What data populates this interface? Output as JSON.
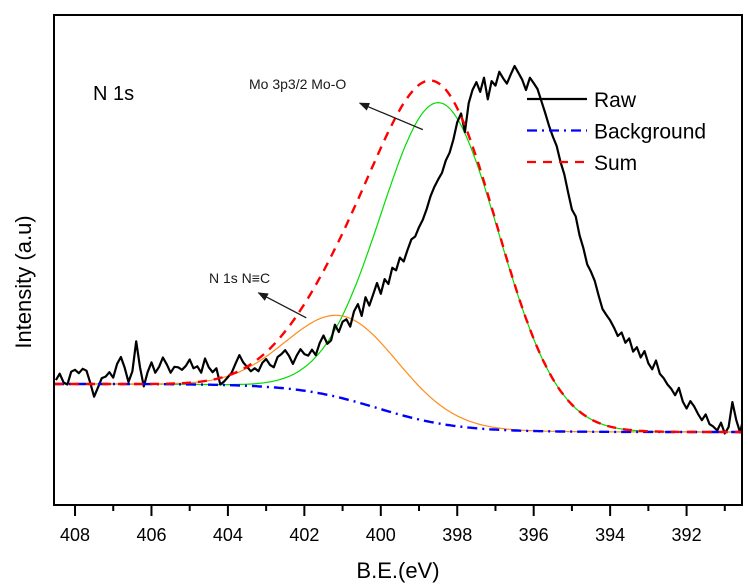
{
  "chart_data": {
    "type": "line",
    "title": "",
    "panel_label": "N 1s",
    "xlabel": "B.E.(eV)",
    "ylabel": "Intensity (a.u)",
    "xlim": [
      408.55,
      390.55
    ],
    "x_reversed": true,
    "ylim": [
      0,
      100
    ],
    "x_ticks": [
      408,
      406,
      404,
      402,
      400,
      398,
      396,
      394,
      392
    ],
    "x_minor_ticks": [
      407,
      405,
      403,
      401,
      399,
      397,
      395,
      393,
      391
    ],
    "y_ticks": [],
    "grid": false,
    "legend": {
      "position": "top-right",
      "entries": [
        {
          "label": "Raw",
          "color": "#000000",
          "style": "solid"
        },
        {
          "label": "Background",
          "color": "#0000ff",
          "style": "dash-dot"
        },
        {
          "label": "Sum",
          "color": "#ff0000",
          "style": "dashed"
        }
      ]
    },
    "background_model": {
      "low_be_level": 14.9,
      "high_be_level": 24.7,
      "center": 400.1,
      "width": 1.05
    },
    "components": [
      {
        "name": "Mo 3p3/2 Mo-O",
        "color": "#00dd00",
        "center": 398.45,
        "amplitude": 65.5,
        "sigma": 1.55
      },
      {
        "name": "N 1s N≡C",
        "color": "#ff8c1a",
        "center": 400.95,
        "amplitude": 16.8,
        "sigma": 1.45
      }
    ],
    "series": [
      {
        "name": "Raw",
        "color": "#000000",
        "x_start": 408.5,
        "x_step": -0.1,
        "values": [
          25.5,
          26.8,
          25.0,
          24.6,
          27.2,
          27.6,
          26.9,
          27.8,
          27.4,
          24.9,
          22.1,
          24.0,
          25.9,
          26.2,
          27.1,
          26.0,
          28.8,
          30.2,
          28.0,
          25.1,
          27.3,
          33.4,
          28.1,
          24.2,
          27.1,
          29.1,
          27.0,
          28.2,
          30.1,
          28.7,
          27.0,
          28.2,
          28.1,
          27.6,
          28.4,
          29.7,
          27.9,
          28.3,
          27.0,
          29.9,
          28.1,
          27.1,
          27.9,
          24.6,
          25.2,
          26.1,
          27.0,
          28.9,
          30.6,
          29.1,
          28.2,
          27.3,
          27.9,
          27.3,
          29.0,
          29.8,
          28.6,
          28.1,
          30.2,
          30.8,
          31.6,
          30.4,
          28.8,
          30.5,
          31.8,
          30.8,
          30.5,
          31.7,
          30.6,
          33.0,
          34.6,
          32.9,
          33.6,
          36.8,
          35.3,
          37.4,
          37.9,
          36.4,
          39.5,
          41.0,
          38.6,
          42.4,
          40.7,
          43.0,
          45.3,
          43.1,
          46.1,
          45.1,
          48.4,
          47.9,
          50.5,
          49.7,
          52.1,
          54.2,
          54.8,
          56.7,
          58.2,
          60.4,
          63.0,
          64.9,
          66.4,
          67.8,
          70.3,
          71.9,
          74.6,
          78.1,
          79.9,
          76.1,
          82.0,
          84.7,
          86.3,
          84.3,
          87.2,
          82.8,
          86.5,
          85.6,
          88.4,
          87.1,
          86.0,
          87.9,
          89.6,
          88.2,
          86.8,
          84.7,
          87.2,
          86.1,
          84.9,
          82.5,
          80.0,
          77.4,
          75.2,
          73.3,
          70.1,
          67.5,
          63.8,
          60.3,
          58.9,
          55.0,
          52.4,
          49.1,
          47.6,
          45.7,
          42.7,
          40.0,
          38.8,
          37.7,
          36.2,
          34.5,
          35.2,
          33.1,
          34.0,
          31.3,
          32.2,
          30.1,
          31.4,
          28.9,
          27.7,
          29.5,
          26.8,
          25.9,
          24.6,
          23.7,
          22.4,
          23.9,
          21.1,
          19.7,
          21.2,
          20.1,
          18.6,
          17.3,
          18.5,
          16.5,
          16.0,
          15.2,
          16.8,
          14.6,
          15.9,
          21.0,
          17.3,
          14.8,
          18.2,
          15.0,
          17.3,
          16.4,
          15.8,
          17.0
        ]
      },
      {
        "name": "Background",
        "color": "#0000ff"
      },
      {
        "name": "Sum",
        "color": "#ff0000"
      }
    ],
    "annotations": [
      {
        "text": "Mo 3p3/2 Mo-O",
        "arrow_from": [
          398.9,
          76.6
        ],
        "arrow_to": [
          400.55,
          82.0
        ]
      },
      {
        "text": "N 1s N≡C",
        "arrow_from": [
          401.95,
          38.2
        ],
        "arrow_to": [
          403.2,
          43.3
        ]
      }
    ]
  }
}
